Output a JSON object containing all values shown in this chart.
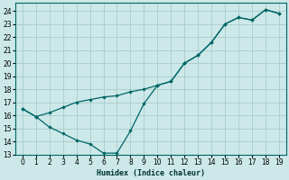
{
  "xlabel": "Humidex (Indice chaleur)",
  "bg_color": "#cce8e8",
  "grid_color": "#aacccc",
  "line_color": "#006666",
  "xlim": [
    -0.5,
    19.5
  ],
  "ylim": [
    13,
    24.6
  ],
  "yticks": [
    13,
    14,
    15,
    16,
    17,
    18,
    19,
    20,
    21,
    22,
    23,
    24
  ],
  "xticks": [
    0,
    1,
    2,
    3,
    4,
    5,
    6,
    7,
    8,
    9,
    10,
    11,
    12,
    13,
    14,
    15,
    16,
    17,
    18,
    19
  ],
  "line1_x": [
    0,
    1,
    2,
    3,
    4,
    5,
    6,
    7,
    8,
    9,
    10,
    11,
    12,
    13,
    14,
    15,
    16,
    17,
    18,
    19
  ],
  "line1_y": [
    16.5,
    15.9,
    15.1,
    14.6,
    14.1,
    13.8,
    13.1,
    13.1,
    14.8,
    16.9,
    18.3,
    18.6,
    20.0,
    20.6,
    21.6,
    23.0,
    23.5,
    23.3,
    24.1,
    23.8
  ],
  "line2_x": [
    0,
    1,
    2,
    3,
    4,
    5,
    6,
    7,
    8,
    9,
    10,
    11,
    12,
    13,
    14,
    15,
    16,
    17,
    18,
    19
  ],
  "line2_y": [
    16.5,
    15.9,
    16.2,
    16.6,
    17.0,
    17.2,
    17.4,
    17.5,
    17.8,
    18.0,
    18.3,
    18.6,
    20.0,
    20.6,
    21.6,
    23.0,
    23.5,
    23.3,
    24.1,
    23.8
  ],
  "tick_fontsize": 5.5,
  "xlabel_fontsize": 6.0,
  "linewidth": 0.9,
  "markersize": 2.2
}
